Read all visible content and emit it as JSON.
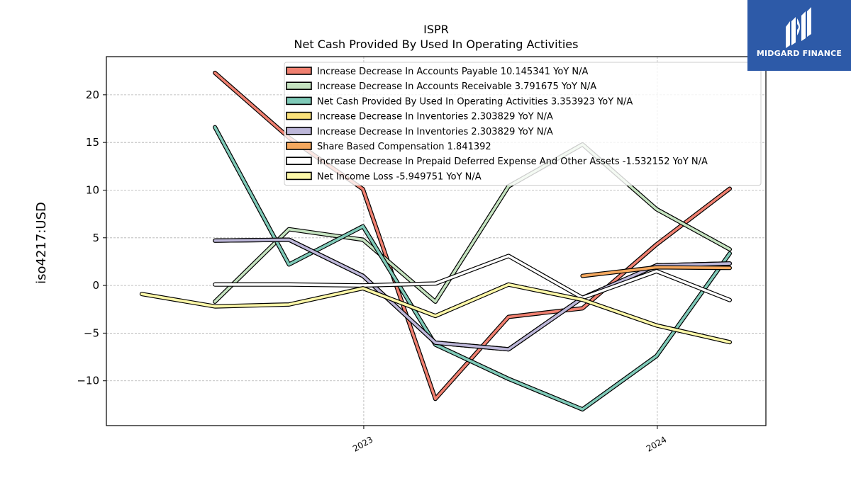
{
  "chart_data": {
    "type": "line",
    "title": "ISPR",
    "subtitle": "Net Cash Provided By Used In Operating Activities",
    "ylabel": "iso4217:USD",
    "xlabel": "",
    "ylim": [
      -14.7,
      24.0
    ],
    "yticks": [
      -10,
      -5,
      0,
      5,
      10,
      15,
      20
    ],
    "ytick_labels": [
      "−10",
      "−5",
      "0",
      "5",
      "10",
      "15",
      "20"
    ],
    "xlim": [
      "2022-02-15",
      "2024-05-15"
    ],
    "xticks": [
      "2023-01-01",
      "2024-01-01"
    ],
    "xtick_labels": [
      "2023",
      "2024"
    ],
    "grid": true,
    "legend_position": "top",
    "series": [
      {
        "name": "Increase Decrease In Accounts Payable  10.145341 YoY N/A",
        "color": "#f08070",
        "points": [
          [
            "2022-06-30",
            22.3
          ],
          [
            "2022-09-30",
            15.5
          ],
          [
            "2022-12-31",
            10.1
          ],
          [
            "2023-03-31",
            -11.9
          ],
          [
            "2023-06-30",
            -3.3
          ],
          [
            "2023-09-30",
            -2.4
          ],
          [
            "2023-12-31",
            4.3
          ],
          [
            "2024-03-31",
            10.145341
          ]
        ]
      },
      {
        "name": "Increase Decrease In Accounts Receivable  3.791675 YoY N/A",
        "color": "#c5e3c0",
        "points": [
          [
            "2022-06-30",
            -1.7
          ],
          [
            "2022-09-30",
            5.9
          ],
          [
            "2022-12-31",
            4.8
          ],
          [
            "2023-03-31",
            -1.7
          ],
          [
            "2023-06-30",
            10.4
          ],
          [
            "2023-09-30",
            14.8
          ],
          [
            "2023-12-31",
            8.0
          ],
          [
            "2024-03-31",
            3.791675
          ]
        ]
      },
      {
        "name": "Net Cash Provided By Used In Operating Activities  3.353923 YoY N/A",
        "color": "#7fcab8",
        "points": [
          [
            "2022-06-30",
            16.6
          ],
          [
            "2022-09-30",
            2.2
          ],
          [
            "2022-12-31",
            6.2
          ],
          [
            "2023-03-31",
            -6.2
          ],
          [
            "2023-06-30",
            -9.8
          ],
          [
            "2023-09-30",
            -13.0
          ],
          [
            "2023-12-31",
            -7.4
          ],
          [
            "2024-03-31",
            3.353923
          ]
        ]
      },
      {
        "name": "Increase Decrease In Inventories  2.303829 YoY N/A",
        "color": "#fbe27a",
        "points": [
          [
            "2022-06-30",
            4.7
          ],
          [
            "2022-09-30",
            4.8
          ],
          [
            "2022-12-31",
            1.0
          ],
          [
            "2023-03-31",
            -6.0
          ],
          [
            "2023-06-30",
            -6.7
          ],
          [
            "2023-09-30",
            -1.3
          ],
          [
            "2023-12-31",
            2.1
          ],
          [
            "2024-03-31",
            2.303829
          ]
        ]
      },
      {
        "name": "Increase Decrease In Inventories  2.303829 YoY N/A",
        "color": "#bdb7d9",
        "points": [
          [
            "2022-06-30",
            4.7
          ],
          [
            "2022-09-30",
            4.8
          ],
          [
            "2022-12-31",
            1.0
          ],
          [
            "2023-03-31",
            -6.0
          ],
          [
            "2023-06-30",
            -6.7
          ],
          [
            "2023-09-30",
            -1.3
          ],
          [
            "2023-12-31",
            2.1
          ],
          [
            "2024-03-31",
            2.303829
          ]
        ]
      },
      {
        "name": "Share Based Compensation  1.841392",
        "color": "#f5a85e",
        "points": [
          [
            "2023-09-30",
            1.0
          ],
          [
            "2023-12-31",
            1.9
          ],
          [
            "2024-03-31",
            1.841392
          ]
        ]
      },
      {
        "name": "Increase Decrease In Prepaid Deferred Expense And Other Assets  -1.532152 YoY N/A",
        "color": "#ffffff",
        "points": [
          [
            "2022-06-30",
            0.1
          ],
          [
            "2022-09-30",
            0.1
          ],
          [
            "2022-12-31",
            0.0
          ],
          [
            "2023-03-31",
            0.2
          ],
          [
            "2023-06-30",
            3.1
          ],
          [
            "2023-09-30",
            -1.3
          ],
          [
            "2023-12-31",
            1.5
          ],
          [
            "2024-03-31",
            -1.532152
          ]
        ]
      },
      {
        "name": "Net Income Loss  -5.949751 YoY N/A",
        "color": "#fdf8a8",
        "points": [
          [
            "2022-03-31",
            -0.9
          ],
          [
            "2022-06-30",
            -2.2
          ],
          [
            "2022-09-30",
            -2.0
          ],
          [
            "2022-12-31",
            -0.3
          ],
          [
            "2023-03-31",
            -3.2
          ],
          [
            "2023-06-30",
            0.1
          ],
          [
            "2023-09-30",
            -1.5
          ],
          [
            "2023-12-31",
            -4.2
          ],
          [
            "2024-03-31",
            -5.949751
          ]
        ]
      }
    ]
  },
  "logo": {
    "text": "MIDGARD FINANCE",
    "background": "#2d5aa8",
    "icon": "midgard-logo-icon"
  }
}
